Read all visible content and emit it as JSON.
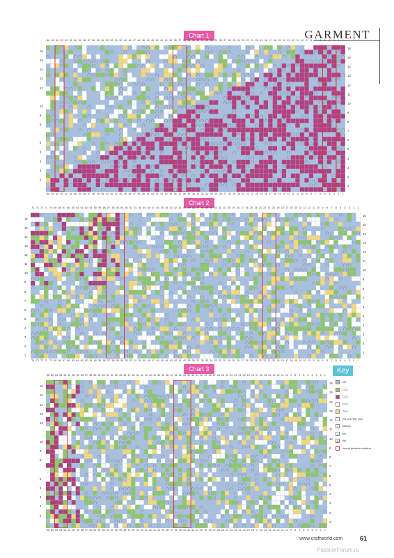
{
  "header": {
    "section": "GARMENT"
  },
  "charts": [
    {
      "label": "Chart 1",
      "stitches": 66,
      "rows": 16,
      "bg": "#a8bfdd",
      "right_rows": [
        1,
        2,
        3,
        4,
        5,
        6,
        7,
        8,
        9,
        10,
        11,
        12,
        13,
        14,
        15,
        16
      ],
      "left_rows": [
        2,
        3,
        4,
        5,
        6,
        8,
        9,
        10,
        12,
        13,
        14,
        15,
        16
      ]
    },
    {
      "label": "Chart 2",
      "stitches": 74,
      "rows": 16,
      "bg": "#a8bfdd",
      "right_rows": [
        1,
        2,
        3,
        4,
        5,
        6,
        7,
        8,
        9,
        10,
        11,
        12,
        13,
        14,
        15,
        16
      ],
      "left_rows": [
        1,
        2,
        3,
        4,
        5,
        6,
        7,
        8,
        9,
        10,
        11,
        12,
        13,
        14,
        15,
        16
      ]
    },
    {
      "label": "Chart 3",
      "stitches": 66,
      "rows": 16,
      "bg": "#a8bfdd",
      "right_rows": [
        1,
        2,
        3,
        4,
        5,
        6,
        7,
        8,
        9,
        10,
        11,
        12,
        13,
        14,
        15,
        16
      ],
      "left_rows": [
        2,
        3,
        4,
        5,
        6,
        8,
        9,
        10,
        12,
        13,
        14,
        15,
        16
      ]
    }
  ],
  "key": {
    "title": "Key",
    "items": [
      {
        "label": "MC",
        "color": "#a8bfdd",
        "symbol": ""
      },
      {
        "label": "CC1",
        "color": "#8fc46f",
        "symbol": ""
      },
      {
        "label": "CC2",
        "color": "#b3417f",
        "symbol": ""
      },
      {
        "label": "CC3",
        "color": "#ffffff",
        "symbol": ""
      },
      {
        "label": "CC4",
        "color": "#f4d77a",
        "symbol": ""
      },
      {
        "label": "RS: knit WS: purl",
        "color": "#ffffff",
        "symbol": ""
      },
      {
        "label": "pfsl1yo",
        "color": "#ffffff",
        "symbol": "∩"
      },
      {
        "label": "brk",
        "color": "#ffffff",
        "symbol": "∩"
      },
      {
        "label": "brp",
        "color": "#ffffff",
        "symbol": "◎"
      },
      {
        "label": "repeat between markers",
        "color": "#ffffff",
        "symbol": ""
      }
    ]
  },
  "footer": {
    "url": "www.craftworld.com",
    "page": "61",
    "watermark": "PassionForum.ru"
  }
}
